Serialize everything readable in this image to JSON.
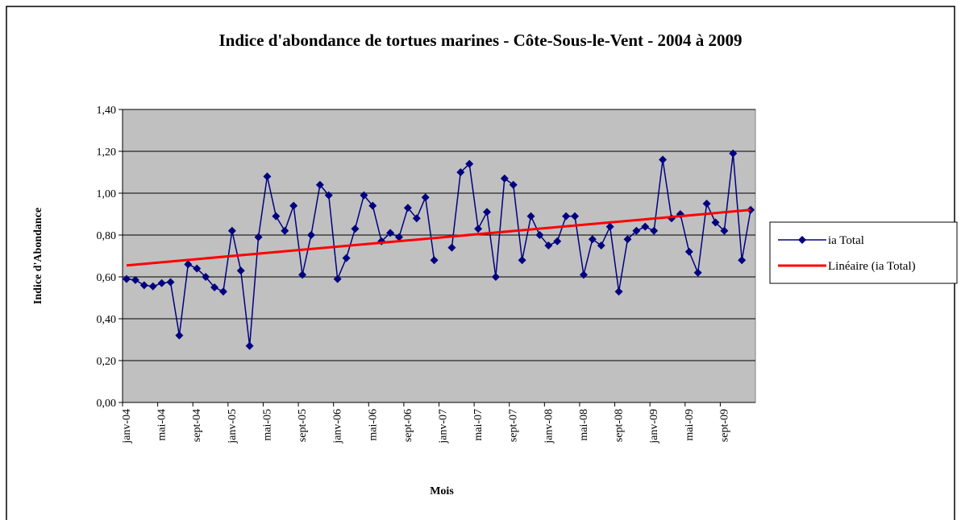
{
  "chart_data": {
    "type": "line",
    "title": "Indice d'abondance de tortues marines - Côte-Sous-le-Vent - 2004 à 2009",
    "x_label": "Mois",
    "y_label": "Indice d'Abondance",
    "categories": [
      "janv-04",
      null,
      null,
      null,
      "mai-04",
      null,
      null,
      null,
      "sept-04",
      null,
      null,
      null,
      "janv-05",
      null,
      null,
      null,
      "mai-05",
      null,
      null,
      null,
      "sept-05",
      null,
      null,
      null,
      "janv-06",
      null,
      null,
      null,
      "mai-06",
      null,
      null,
      null,
      "sept-06",
      null,
      null,
      null,
      "janv-07",
      null,
      null,
      null,
      "mai-07",
      null,
      null,
      null,
      "sept-07",
      null,
      null,
      null,
      "janv-08",
      null,
      null,
      null,
      "mai-08",
      null,
      null,
      null,
      "sept-08",
      null,
      null,
      null,
      "janv-09",
      null,
      null,
      null,
      "mai-09",
      null,
      null,
      null,
      "sept-09",
      null,
      null,
      null
    ],
    "series": [
      {
        "name": "ia Total",
        "color": "#000080",
        "values": [
          0.59,
          0.585,
          0.56,
          0.555,
          0.57,
          0.575,
          0.32,
          0.66,
          0.64,
          0.6,
          0.55,
          0.53,
          0.82,
          0.63,
          0.27,
          0.79,
          1.08,
          0.89,
          0.82,
          0.94,
          0.61,
          0.8,
          1.04,
          0.99,
          0.59,
          0.69,
          0.83,
          0.99,
          0.94,
          0.77,
          0.81,
          0.79,
          0.93,
          0.88,
          0.98,
          0.68,
          null,
          0.74,
          1.1,
          1.14,
          0.83,
          0.91,
          0.6,
          1.07,
          1.04,
          0.68,
          0.89,
          0.8,
          0.75,
          0.77,
          0.89,
          0.89,
          0.61,
          0.78,
          0.75,
          0.84,
          0.53,
          0.78,
          0.82,
          0.84,
          0.82,
          1.16,
          0.88,
          0.9,
          0.72,
          0.62,
          0.95,
          0.86,
          0.82,
          1.19,
          0.68,
          0.92
        ]
      }
    ],
    "trendline": {
      "name": "Linéaire (ia Total)",
      "color": "#ff0000",
      "start": 0.655,
      "end": 0.92
    },
    "ylim": [
      0,
      1.4
    ],
    "yticks": [
      {
        "value": 0,
        "label": "0,00"
      },
      {
        "value": 0.2,
        "label": "0,20"
      },
      {
        "value": 0.4,
        "label": "0,40"
      },
      {
        "value": 0.6,
        "label": "0,60"
      },
      {
        "value": 0.8,
        "label": "0,80"
      },
      {
        "value": 1,
        "label": "1,00"
      },
      {
        "value": 1.2,
        "label": "1,20"
      },
      {
        "value": 1.4,
        "label": "1,40"
      }
    ],
    "grid": true,
    "legend": "right",
    "plot_background": "#c0c0c0"
  }
}
